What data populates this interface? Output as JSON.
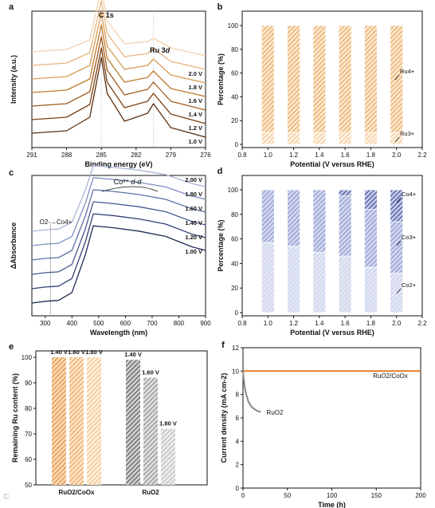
{
  "figure": {
    "colors": {
      "orange_spectra": [
        "#5a2e0e",
        "#7a3f12",
        "#a05a1c",
        "#c07a2e",
        "#d89a52",
        "#e8b57e",
        "#f5d2b0"
      ],
      "blue_spectra": [
        "#1d2a55",
        "#2f3f73",
        "#46588e",
        "#5d70a6",
        "#7d8fc0",
        "#a7b3d9"
      ],
      "orange_bar": "#e6a65c",
      "orange_bar_light": "#f3c58e",
      "blue_bar_light": "#c9cfe9",
      "blue_bar_mid": "#8b97cc",
      "blue_bar_dark": "#3d4a8f",
      "gray_bars": [
        "#555555",
        "#8a8a8a",
        "#b8b8b8"
      ],
      "ruo2_line": "#888888",
      "composite_line": "#e07b2a"
    }
  },
  "panels": [
    {
      "label": "a",
      "chart_data": {
        "type": "line",
        "xlabel": "Binding energy (eV)",
        "ylabel": "Intensity (a.u.)",
        "xlim": [
          291,
          276
        ],
        "xticks": [
          "291",
          "288",
          "285",
          "282",
          "279",
          "276"
        ],
        "annotations": [
          "C 1s",
          "Ru 3d"
        ],
        "series": [
          {
            "name": "1.0 V",
            "x": [
              291,
              288,
              286,
              285,
              284.5,
              283,
              281,
              280.5,
              279,
              276
            ],
            "y": [
              0.05,
              0.08,
              0.25,
              1.0,
              0.55,
              0.2,
              0.3,
              0.42,
              0.12,
              0.0
            ]
          },
          {
            "name": "1.2 V",
            "x": [
              291,
              288,
              286,
              285,
              284.5,
              283,
              281,
              280.5,
              279,
              276
            ],
            "y": [
              0.05,
              0.08,
              0.24,
              0.95,
              0.52,
              0.2,
              0.28,
              0.38,
              0.12,
              0.0
            ]
          },
          {
            "name": "1.4 V",
            "x": [
              291,
              288,
              286,
              285,
              284.5,
              283,
              281,
              280.5,
              279,
              276
            ],
            "y": [
              0.05,
              0.08,
              0.23,
              0.92,
              0.5,
              0.19,
              0.26,
              0.35,
              0.11,
              0.0
            ]
          },
          {
            "name": "1.6 V",
            "x": [
              291,
              288,
              286,
              285,
              284.5,
              283,
              281,
              280.5,
              279,
              276
            ],
            "y": [
              0.05,
              0.08,
              0.22,
              0.9,
              0.48,
              0.18,
              0.24,
              0.32,
              0.1,
              0.0
            ]
          },
          {
            "name": "1.8 V",
            "x": [
              291,
              288,
              286,
              285,
              284.5,
              283,
              281,
              280.5,
              279,
              276
            ],
            "y": [
              0.05,
              0.08,
              0.22,
              0.88,
              0.46,
              0.17,
              0.22,
              0.3,
              0.1,
              0.0
            ]
          },
          {
            "name": "2.0 V",
            "x": [
              291,
              288,
              286,
              285,
              284.5,
              283,
              281,
              280.5,
              279,
              276
            ],
            "y": [
              0.05,
              0.08,
              0.21,
              0.86,
              0.45,
              0.16,
              0.2,
              0.26,
              0.1,
              0.0
            ]
          },
          {
            "name": "",
            "x": [
              291,
              288,
              286,
              285,
              284.5,
              283,
              281,
              280.5,
              279,
              276
            ],
            "y": [
              0.05,
              0.08,
              0.2,
              0.84,
              0.44,
              0.15,
              0.18,
              0.22,
              0.1,
              0.0
            ]
          }
        ]
      }
    },
    {
      "label": "b",
      "chart_data": {
        "type": "bar",
        "stacked": true,
        "xlabel": "Potential (V versus RHE)",
        "ylabel": "Percentage (%)",
        "xlim": [
          0.8,
          2.2
        ],
        "ylim": [
          0,
          100
        ],
        "xticks": [
          "0.8",
          "1.0",
          "1.2",
          "1.4",
          "1.6",
          "1.8",
          "2.0",
          "2.2"
        ],
        "yticks": [
          "0",
          "20",
          "40",
          "60",
          "80",
          "100"
        ],
        "x": [
          1.0,
          1.2,
          1.4,
          1.6,
          1.8,
          2.0
        ],
        "series": [
          {
            "name": "Ru3+",
            "values": [
              10,
              10,
              10,
              10,
              10,
              10
            ]
          },
          {
            "name": "Ru4+",
            "values": [
              90,
              90,
              90,
              90,
              90,
              90
            ]
          }
        ]
      }
    },
    {
      "label": "c",
      "chart_data": {
        "type": "line",
        "xlabel": "Wavelength (nm)",
        "ylabel": "ΔAbsorbance",
        "xlim": [
          250,
          900
        ],
        "xticks": [
          "300",
          "400",
          "500",
          "600",
          "700",
          "800",
          "900"
        ],
        "annotations": [
          "Co3+ d-d",
          "O2-→Co4+"
        ],
        "series": [
          {
            "name": "1.00 V",
            "x": [
              250,
              300,
              350,
              400,
              450,
              480,
              550,
              650,
              750,
              850,
              900
            ],
            "y": [
              0.0,
              0.02,
              0.03,
              0.12,
              0.55,
              0.88,
              0.86,
              0.82,
              0.76,
              0.64,
              0.6
            ]
          },
          {
            "name": "1.20 V",
            "x": [
              250,
              300,
              350,
              400,
              450,
              480,
              550,
              650,
              750,
              850,
              900
            ],
            "y": [
              0.0,
              0.02,
              0.03,
              0.12,
              0.55,
              0.88,
              0.86,
              0.82,
              0.76,
              0.64,
              0.6
            ]
          },
          {
            "name": "1.40 V",
            "x": [
              250,
              300,
              350,
              400,
              450,
              480,
              550,
              650,
              750,
              850,
              900
            ],
            "y": [
              0.0,
              0.02,
              0.03,
              0.12,
              0.55,
              0.88,
              0.86,
              0.82,
              0.76,
              0.64,
              0.6
            ]
          },
          {
            "name": "1.60 V",
            "x": [
              250,
              300,
              350,
              400,
              450,
              480,
              550,
              650,
              750,
              850,
              900
            ],
            "y": [
              0.0,
              0.02,
              0.03,
              0.12,
              0.55,
              0.88,
              0.86,
              0.82,
              0.76,
              0.64,
              0.6
            ]
          },
          {
            "name": "1.80 V",
            "x": [
              250,
              300,
              350,
              400,
              450,
              480,
              550,
              650,
              750,
              850,
              900
            ],
            "y": [
              0.0,
              0.02,
              0.03,
              0.12,
              0.55,
              0.88,
              0.86,
              0.82,
              0.76,
              0.64,
              0.6
            ]
          },
          {
            "name": "2.00 V",
            "x": [
              250,
              300,
              350,
              400,
              450,
              480,
              550,
              650,
              750,
              850,
              900
            ],
            "y": [
              0.0,
              0.02,
              0.03,
              0.12,
              0.55,
              0.88,
              0.86,
              0.82,
              0.76,
              0.64,
              0.6
            ]
          }
        ]
      }
    },
    {
      "label": "d",
      "chart_data": {
        "type": "bar",
        "stacked": true,
        "xlabel": "Potential (V versus RHE)",
        "ylabel": "Percentage (%)",
        "xlim": [
          0.8,
          2.2
        ],
        "ylim": [
          0,
          100
        ],
        "xticks": [
          "0.8",
          "1.0",
          "1.2",
          "1.4",
          "1.6",
          "1.8",
          "2.0",
          "2.2"
        ],
        "yticks": [
          "0",
          "20",
          "40",
          "60",
          "80",
          "100"
        ],
        "x": [
          1.0,
          1.2,
          1.4,
          1.6,
          1.8,
          2.0
        ],
        "series": [
          {
            "name": "Co2+",
            "values": [
              57,
              54,
              49,
              46,
              37,
              32
            ]
          },
          {
            "name": "Co3+",
            "values": [
              43,
              46,
              51,
              49,
              47,
              42
            ]
          },
          {
            "name": "Co4+",
            "values": [
              0,
              0,
              0,
              5,
              16,
              26
            ]
          }
        ]
      }
    },
    {
      "label": "e",
      "chart_data": {
        "type": "bar",
        "ylabel": "Remaining Ru content (%)",
        "ylim": [
          50,
          100
        ],
        "yticks": [
          "50",
          "60",
          "70",
          "80",
          "90",
          "100"
        ],
        "groups": [
          "RuO2/CoOx",
          "RuO2"
        ],
        "bar_labels": [
          [
            "1.40 V",
            "1.60 V",
            "1.80 V"
          ],
          [
            "1.40 V",
            "1.60 V",
            "1.80 V"
          ]
        ],
        "series": [
          {
            "name": "RuO2/CoOx",
            "values": [
              100,
              100,
              100
            ]
          },
          {
            "name": "RuO2",
            "values": [
              99,
              92,
              72
            ]
          }
        ]
      }
    },
    {
      "label": "f",
      "chart_data": {
        "type": "line",
        "xlabel": "Time (h)",
        "ylabel": "Current density (mA cm-2)",
        "xlim": [
          0,
          200
        ],
        "ylim": [
          0,
          12
        ],
        "xticks": [
          "0",
          "50",
          "100",
          "150",
          "200"
        ],
        "yticks": [
          "0",
          "2",
          "4",
          "6",
          "8",
          "10",
          "12"
        ],
        "series": [
          {
            "name": "RuO2/CoOx",
            "x": [
              0,
              25,
              50,
              75,
              100,
              125,
              150,
              175,
              200
            ],
            "y": [
              10,
              10,
              10,
              10,
              10,
              10,
              10,
              10,
              10
            ]
          },
          {
            "name": "RuO2",
            "x": [
              0,
              1,
              2,
              4,
              6,
              9,
              12,
              16,
              20
            ],
            "y": [
              10,
              9.2,
              8.6,
              7.9,
              7.4,
              7.0,
              6.8,
              6.6,
              6.5
            ]
          }
        ]
      }
    }
  ]
}
